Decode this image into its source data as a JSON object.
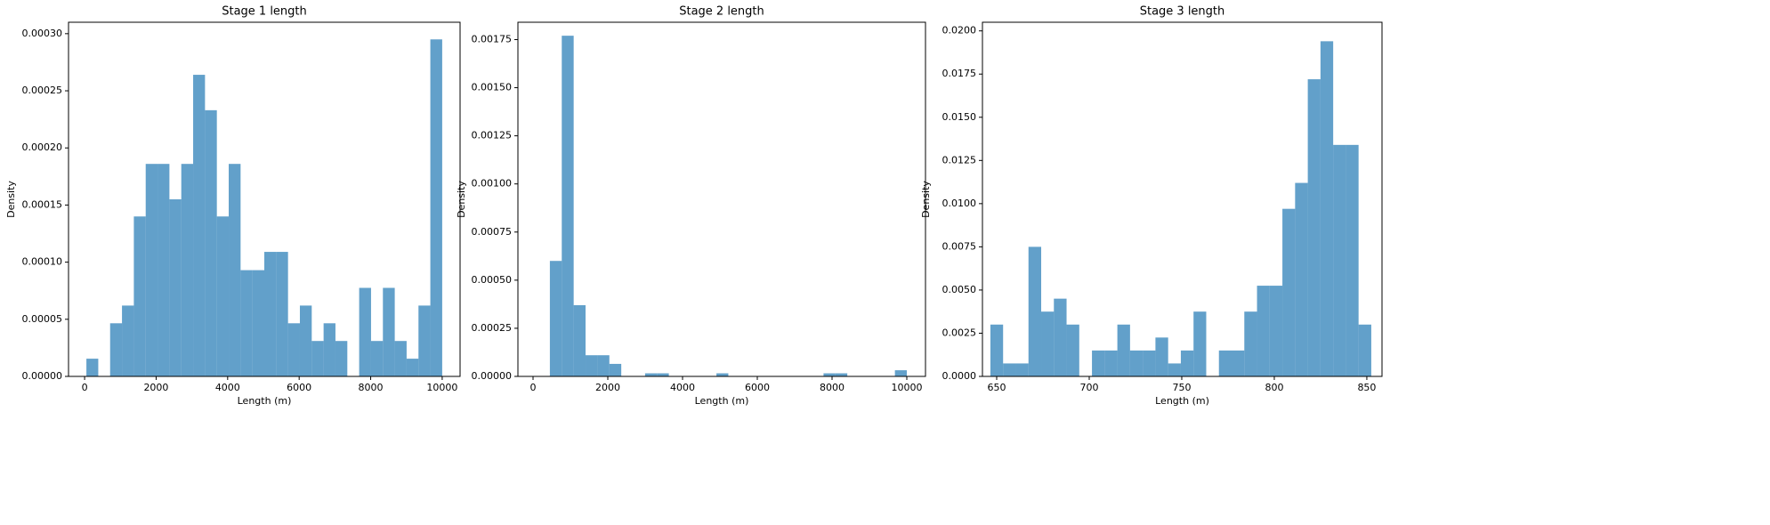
{
  "chart_data": [
    {
      "type": "histogram",
      "title": "Stage 1 length",
      "xlabel": "Length (m)",
      "ylabel": "Density",
      "color": "#1f77b4",
      "bins": [
        50,
        381.7,
        713.3,
        1045,
        1376.7,
        1708.3,
        2040,
        2371.7,
        2703.3,
        3035,
        3366.7,
        3698.3,
        4030,
        4361.7,
        4693.3,
        5025,
        5356.7,
        5688.3,
        6020,
        6351.7,
        6683.3,
        7015,
        7346.7,
        7678.3,
        8010,
        8341.7,
        8673.3,
        9005,
        9336.7,
        9668.3,
        10000
      ],
      "values": [
        1.55e-05,
        0,
        4.65e-05,
        6.2e-05,
        0.00014,
        0.000186,
        0.000186,
        0.000155,
        0.000186,
        0.000264,
        0.000233,
        0.00014,
        0.000186,
        9.3e-05,
        9.3e-05,
        0.000109,
        0.000109,
        4.65e-05,
        6.2e-05,
        3.1e-05,
        4.65e-05,
        3.1e-05,
        0,
        7.75e-05,
        3.1e-05,
        7.75e-05,
        3.1e-05,
        1.55e-05,
        6.2e-05,
        0.000295
      ],
      "xlim": [
        -450,
        10500
      ],
      "ylim": [
        0,
        0.00031
      ],
      "xticks": [
        0,
        2000,
        4000,
        6000,
        8000,
        10000
      ],
      "yticks": [
        {
          "value": 0,
          "label": "0.00000"
        },
        {
          "value": 5e-05,
          "label": "0.00005"
        },
        {
          "value": 0.0001,
          "label": "0.00010"
        },
        {
          "value": 0.00015,
          "label": "0.00015"
        },
        {
          "value": 0.0002,
          "label": "0.00020"
        },
        {
          "value": 0.00025,
          "label": "0.00025"
        },
        {
          "value": 0.0003,
          "label": "0.00030"
        }
      ]
    },
    {
      "type": "histogram",
      "title": "Stage 2 length",
      "xlabel": "Length (m)",
      "ylabel": "Density",
      "color": "#1f77b4",
      "bins": [
        450,
        768.3,
        1086.7,
        1405,
        1723.3,
        2041.7,
        2360,
        2678.3,
        2996.7,
        3315,
        3633.3,
        3951.7,
        4270,
        4588.3,
        4906.7,
        5225,
        5543.3,
        5861.7,
        6180,
        6498.3,
        6816.7,
        7135,
        7453.3,
        7771.7,
        8090,
        8408.3,
        8726.7,
        9045,
        9363.3,
        9681.7,
        10000
      ],
      "values": [
        0.0006,
        0.00177,
        0.00037,
        0.00011,
        0.00011,
        6.5e-05,
        0,
        0,
        1.6e-05,
        1.6e-05,
        0,
        0,
        0,
        0,
        1.6e-05,
        0,
        0,
        0,
        0,
        0,
        0,
        0,
        0,
        1.6e-05,
        1.6e-05,
        0,
        0,
        0,
        0,
        3.2e-05
      ],
      "xlim": [
        -405,
        10500
      ],
      "ylim": [
        0,
        0.00184
      ],
      "xticks": [
        0,
        2000,
        4000,
        6000,
        8000,
        10000
      ],
      "yticks": [
        {
          "value": 0,
          "label": "0.00000"
        },
        {
          "value": 0.00025,
          "label": "0.00025"
        },
        {
          "value": 0.0005,
          "label": "0.00050"
        },
        {
          "value": 0.00075,
          "label": "0.00075"
        },
        {
          "value": 0.001,
          "label": "0.00100"
        },
        {
          "value": 0.00125,
          "label": "0.00125"
        },
        {
          "value": 0.0015,
          "label": "0.00150"
        },
        {
          "value": 0.00175,
          "label": "0.00175"
        }
      ]
    },
    {
      "type": "histogram",
      "title": "Stage 3 length",
      "xlabel": "Length (m)",
      "ylabel": "Density",
      "color": "#1f77b4",
      "bins": [
        646.6,
        653.46,
        660.32,
        667.18,
        674.04,
        680.9,
        687.76,
        694.62,
        701.48,
        708.34,
        715.2,
        722.06,
        728.92,
        735.78,
        742.64,
        749.5,
        756.36,
        763.22,
        770.08,
        776.94,
        783.8,
        790.66,
        797.52,
        804.38,
        811.24,
        818.1,
        824.96,
        831.82,
        838.68,
        845.54,
        852.4
      ],
      "values": [
        0.003,
        0.00075,
        0.00075,
        0.0075,
        0.00375,
        0.0045,
        0.003,
        0,
        0.0015,
        0.0015,
        0.003,
        0.0015,
        0.0015,
        0.00225,
        0.00075,
        0.0015,
        0.00375,
        0,
        0.0015,
        0.0015,
        0.00375,
        0.00525,
        0.00525,
        0.0097,
        0.0112,
        0.0172,
        0.0194,
        0.0134,
        0.0134,
        0.003
      ],
      "xlim": [
        642.3,
        858.2
      ],
      "ylim": [
        0,
        0.0205
      ],
      "xticks": [
        650,
        700,
        750,
        800,
        850
      ],
      "yticks": [
        {
          "value": 0,
          "label": "0.0000"
        },
        {
          "value": 0.0025,
          "label": "0.0025"
        },
        {
          "value": 0.005,
          "label": "0.0050"
        },
        {
          "value": 0.0075,
          "label": "0.0075"
        },
        {
          "value": 0.01,
          "label": "0.0100"
        },
        {
          "value": 0.0125,
          "label": "0.0125"
        },
        {
          "value": 0.015,
          "label": "0.0150"
        },
        {
          "value": 0.0175,
          "label": "0.0175"
        },
        {
          "value": 0.02,
          "label": "0.0200"
        }
      ]
    }
  ]
}
